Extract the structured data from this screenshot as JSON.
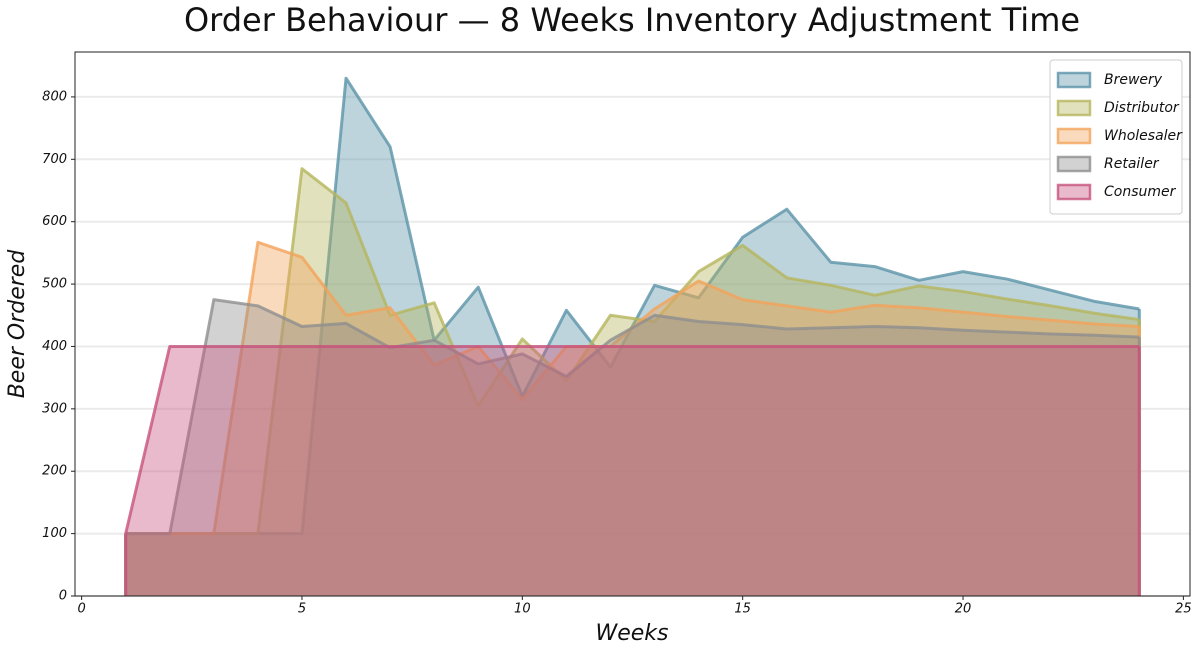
{
  "chart_data": {
    "type": "area",
    "title": "Order Behaviour — 8 Weeks Inventory Adjustment Time",
    "x_label": "Weeks",
    "y_label": "Beer Ordered",
    "x": [
      1,
      2,
      3,
      4,
      5,
      6,
      7,
      8,
      9,
      10,
      11,
      12,
      13,
      14,
      15,
      16,
      17,
      18,
      19,
      20,
      21,
      22,
      23,
      24
    ],
    "series": [
      {
        "name": "Brewery",
        "color": "#5b93a8",
        "values": [
          100,
          100,
          100,
          100,
          100,
          830,
          720,
          410,
          495,
          320,
          458,
          367,
          498,
          478,
          575,
          620,
          535,
          528,
          506,
          520,
          508,
          490,
          472,
          460
        ]
      },
      {
        "name": "Distributor",
        "color": "#b5b55c",
        "values": [
          100,
          100,
          100,
          100,
          685,
          630,
          450,
          470,
          305,
          412,
          345,
          450,
          440,
          520,
          562,
          510,
          498,
          482,
          497,
          488,
          476,
          465,
          453,
          443
        ]
      },
      {
        "name": "Wholesaler",
        "color": "#f3a35a",
        "values": [
          100,
          100,
          100,
          567,
          543,
          450,
          462,
          370,
          400,
          315,
          400,
          400,
          460,
          505,
          475,
          465,
          455,
          466,
          462,
          455,
          448,
          442,
          436,
          432
        ]
      },
      {
        "name": "Retailer",
        "color": "#8e8e8e",
        "values": [
          100,
          100,
          475,
          465,
          432,
          437,
          398,
          410,
          372,
          388,
          352,
          410,
          450,
          440,
          435,
          428,
          430,
          432,
          430,
          426,
          423,
          420,
          418,
          415
        ]
      },
      {
        "name": "Consumer",
        "color": "#c7527c",
        "values": [
          100,
          400,
          400,
          400,
          400,
          400,
          400,
          400,
          400,
          400,
          400,
          400,
          400,
          400,
          400,
          400,
          400,
          400,
          400,
          400,
          400,
          400,
          400,
          400
        ]
      }
    ],
    "xlim": [
      -0.15,
      25.15
    ],
    "ylim": [
      0,
      872
    ],
    "xticks": [
      0,
      5,
      10,
      15,
      20,
      25
    ],
    "yticks": [
      0,
      100,
      200,
      300,
      400,
      500,
      600,
      700,
      800
    ],
    "grid": true,
    "legend": "upper right"
  }
}
